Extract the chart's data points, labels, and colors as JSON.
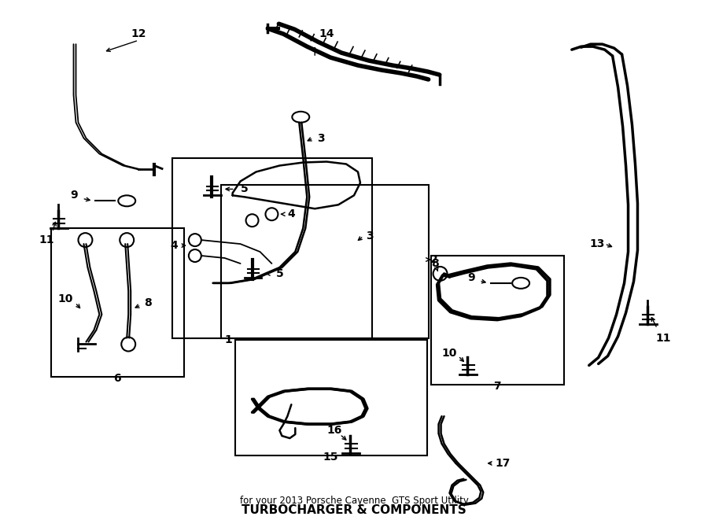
{
  "title": "TURBOCHARGER & COMPONENTS",
  "subtitle": "for your 2013 Porsche Cayenne  GTS Sport Utility",
  "bg_color": "#ffffff",
  "line_color": "#000000",
  "fig_width": 9.0,
  "fig_height": 6.61,
  "dpi": 100
}
